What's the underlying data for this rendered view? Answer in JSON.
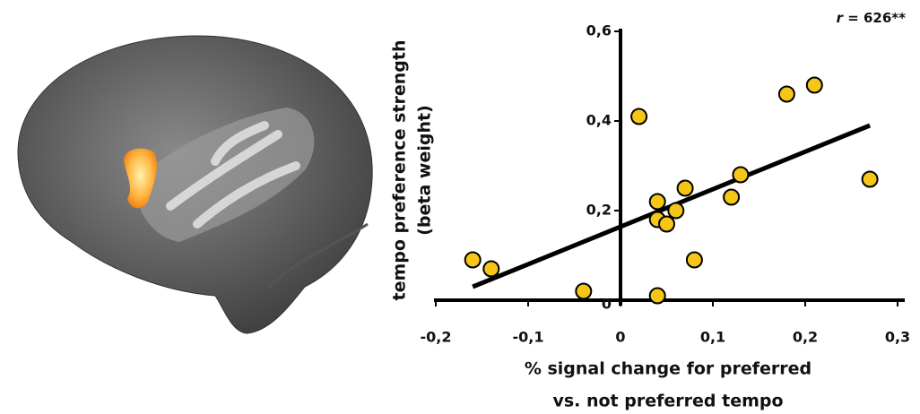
{
  "chart_data": {
    "type": "scatter",
    "ylabel": [
      "tempo preference strength",
      "(beta weight)"
    ],
    "xlabel": [
      "% signal change for preferred",
      "vs. not preferred tempo"
    ],
    "annotation": [
      "r",
      " = 626**"
    ],
    "x": [
      -0.16,
      -0.14,
      -0.04,
      0.02,
      0.04,
      0.04,
      0.04,
      0.05,
      0.06,
      0.07,
      0.08,
      0.12,
      0.13,
      0.18,
      0.21,
      0.27
    ],
    "values": [
      0.09,
      0.07,
      0.02,
      0.41,
      0.22,
      0.18,
      0.01,
      0.17,
      0.2,
      0.25,
      0.09,
      0.23,
      0.28,
      0.46,
      0.48,
      0.27
    ],
    "color": "#f5c518",
    "trend": {
      "x": [
        -0.16,
        0.27
      ],
      "values": [
        0.03,
        0.39
      ],
      "color": "#000000"
    },
    "xlim": [
      -0.2,
      0.3
    ],
    "ylim": [
      0,
      0.6
    ],
    "xticks": [
      {
        "value": -0.2,
        "label": "-0,2"
      },
      {
        "value": -0.1,
        "label": "-0,1"
      },
      0,
      {
        "value": 0.1,
        "label": "0,1"
      },
      {
        "value": 0.2,
        "label": "0,2"
      },
      {
        "value": 0.3,
        "label": "0,3"
      }
    ],
    "yticks": [
      0,
      {
        "value": 0.2,
        "label": "0,2"
      },
      {
        "value": 0.4,
        "label": "0,4"
      },
      {
        "value": 0.6,
        "label": "0,6"
      }
    ],
    "grid": false
  }
}
